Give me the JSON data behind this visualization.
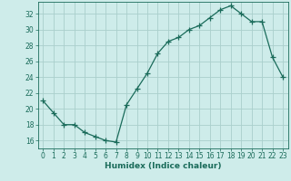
{
  "xlabel": "Humidex (Indice chaleur)",
  "x": [
    0,
    1,
    2,
    3,
    4,
    5,
    6,
    7,
    8,
    9,
    10,
    11,
    12,
    13,
    14,
    15,
    16,
    17,
    18,
    19,
    20,
    21,
    22,
    23
  ],
  "y": [
    21,
    19.5,
    18,
    18,
    17,
    16.5,
    16,
    15.8,
    20.5,
    22.5,
    24.5,
    27,
    28.5,
    29,
    30,
    30.5,
    31.5,
    32.5,
    33,
    32,
    31,
    31,
    26.5,
    24
  ],
  "line_color": "#1a6b5a",
  "marker": "+",
  "marker_size": 4,
  "bg_color": "#ceecea",
  "grid_color": "#aacfcc",
  "tick_color": "#1a6b5a",
  "label_color": "#1a6b5a",
  "ylim": [
    15,
    33.5
  ],
  "xlim": [
    -0.5,
    23.5
  ],
  "yticks": [
    16,
    18,
    20,
    22,
    24,
    26,
    28,
    30,
    32
  ],
  "xticks": [
    0,
    1,
    2,
    3,
    4,
    5,
    6,
    7,
    8,
    9,
    10,
    11,
    12,
    13,
    14,
    15,
    16,
    17,
    18,
    19,
    20,
    21,
    22,
    23
  ],
  "tick_fontsize": 5.5,
  "xlabel_fontsize": 6.5
}
